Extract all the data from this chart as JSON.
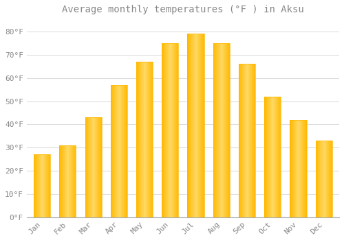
{
  "title": "Average monthly temperatures (°F ) in Aksu",
  "months": [
    "Jan",
    "Feb",
    "Mar",
    "Apr",
    "May",
    "Jun",
    "Jul",
    "Aug",
    "Sep",
    "Oct",
    "Nov",
    "Dec"
  ],
  "values": [
    27,
    31,
    43,
    57,
    67,
    75,
    79,
    75,
    66,
    52,
    42,
    33
  ],
  "bar_color_main": "#FFB800",
  "bar_color_light": "#FFD966",
  "background_color": "#FFFFFF",
  "grid_color": "#DDDDDD",
  "text_color": "#888888",
  "ylim": [
    0,
    85
  ],
  "yticks": [
    0,
    10,
    20,
    30,
    40,
    50,
    60,
    70,
    80
  ],
  "ytick_labels": [
    "0°F",
    "10°F",
    "20°F",
    "30°F",
    "40°F",
    "50°F",
    "60°F",
    "70°F",
    "80°F"
  ],
  "title_fontsize": 10,
  "tick_fontsize": 8
}
